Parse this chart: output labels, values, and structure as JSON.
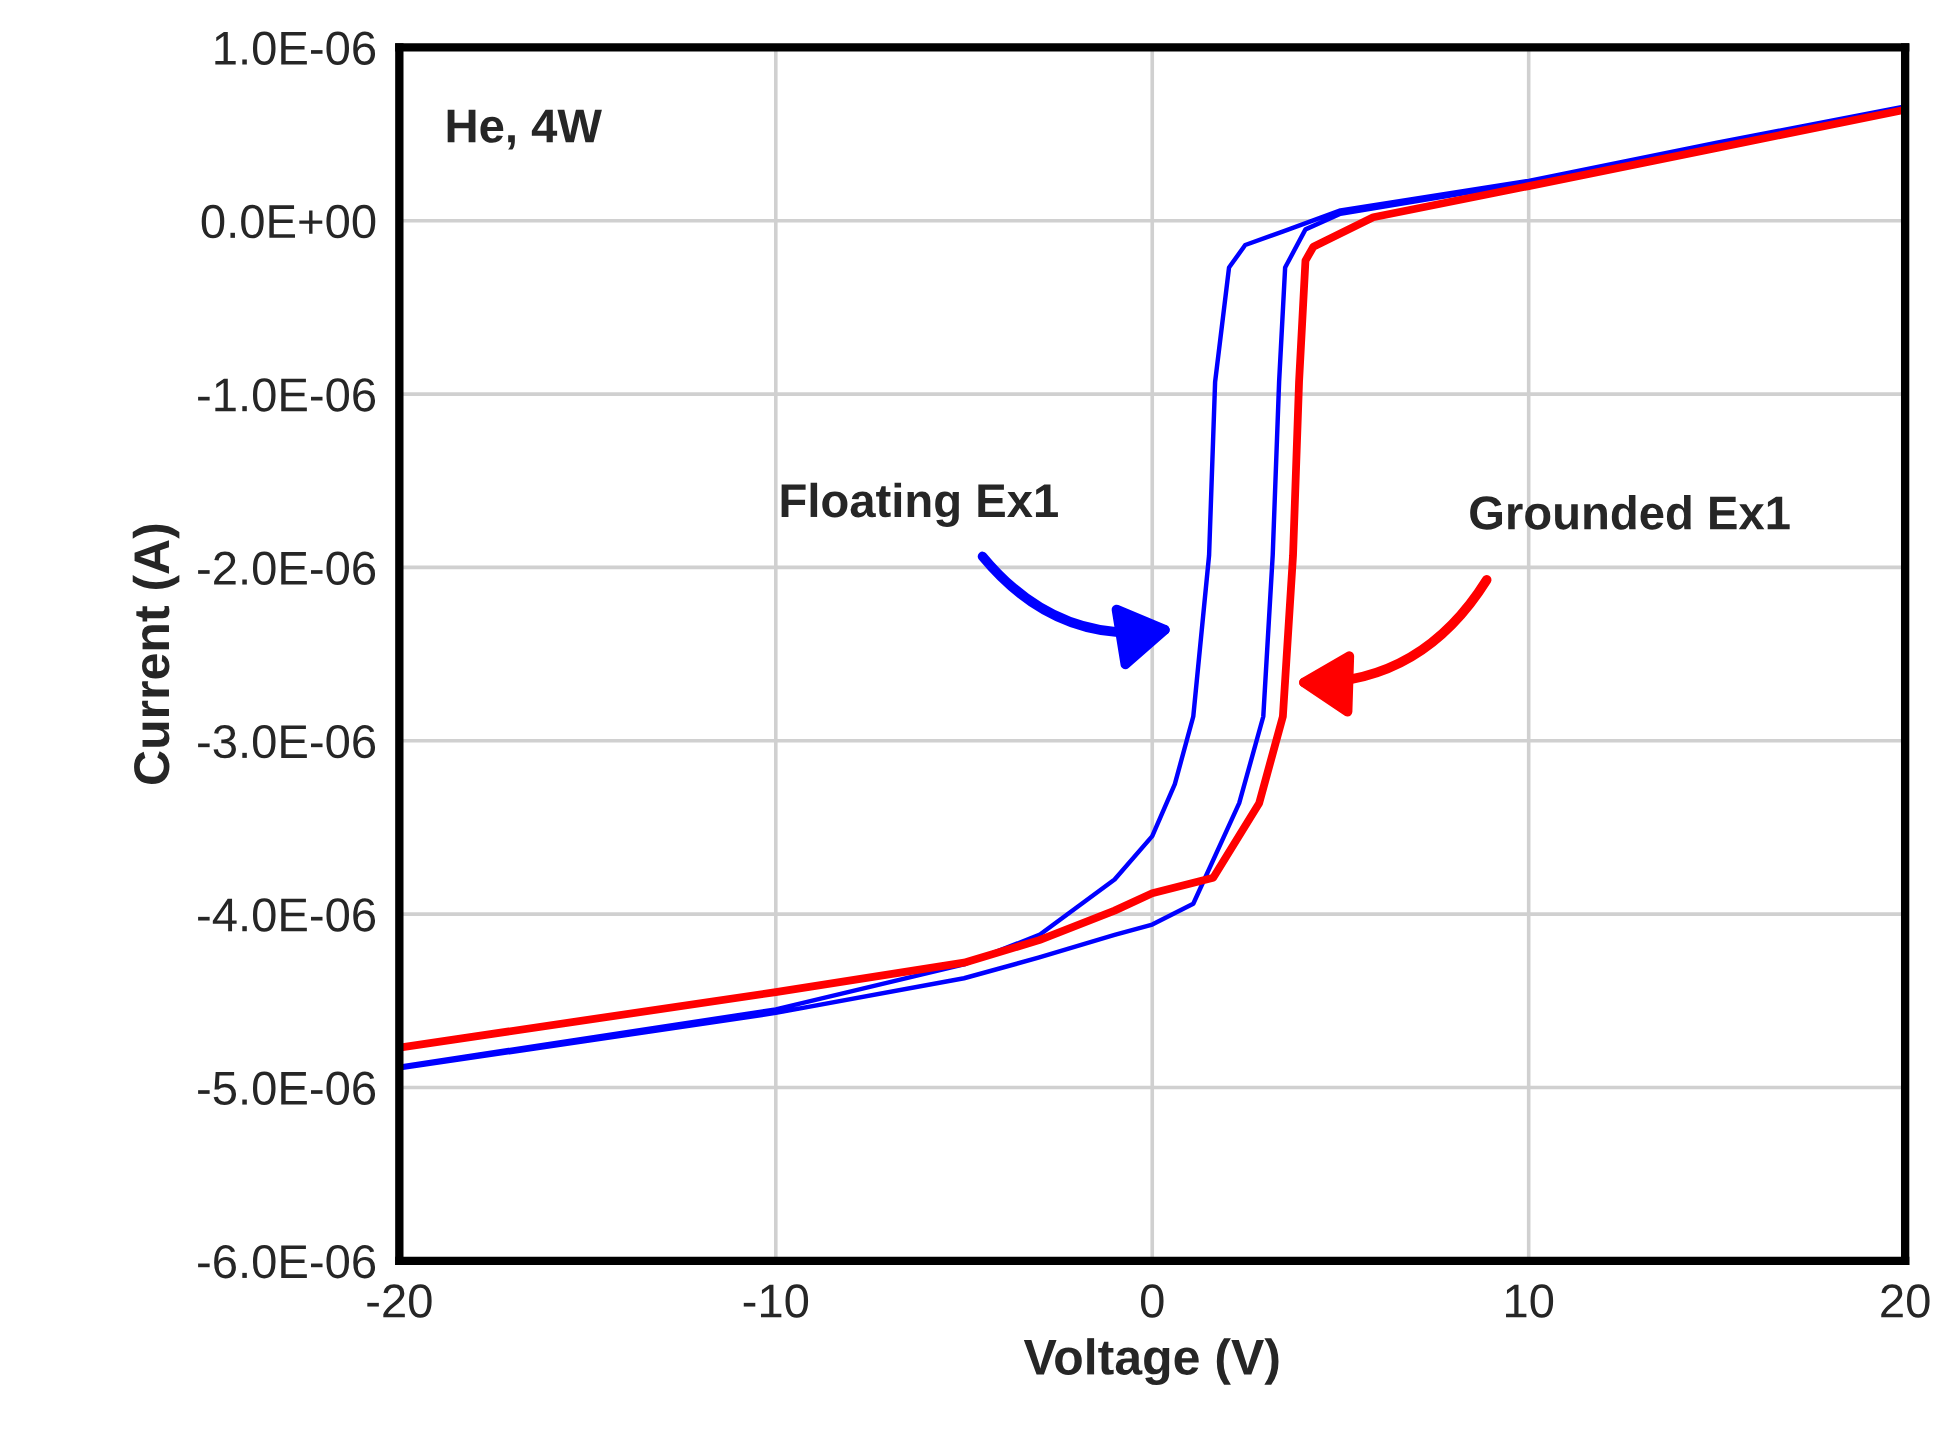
{
  "chart_data": {
    "type": "line",
    "xlabel": "Voltage (V)",
    "ylabel": "Current (A)",
    "xlim": [
      -20,
      20
    ],
    "xticks": [
      -20,
      -10,
      0,
      10,
      20
    ],
    "ylim": [
      -6e-06,
      1e-06
    ],
    "yticks": [
      {
        "value": -6e-06,
        "label": "-6.0E-06"
      },
      {
        "value": -5e-06,
        "label": "-5.0E-06"
      },
      {
        "value": -4e-06,
        "label": "-4.0E-06"
      },
      {
        "value": -3e-06,
        "label": "-3.0E-06"
      },
      {
        "value": -2e-06,
        "label": "-2.0E-06"
      },
      {
        "value": -1e-06,
        "label": "-1.0E-06"
      },
      {
        "value": 0,
        "label": "0.0E+00"
      },
      {
        "value": 1e-06,
        "label": "1.0E-06"
      }
    ],
    "grid": true,
    "legend": false,
    "marker": "none",
    "line_style": "solid",
    "series": [
      {
        "color": "#0000ff",
        "x": [
          -20,
          -10,
          -5,
          -3,
          -1,
          0,
          0.6,
          1.09,
          1.51,
          1.67,
          2.04,
          2.47,
          3.5,
          5,
          10,
          15,
          20,
          15,
          10,
          5,
          4.07,
          3.53,
          3.37,
          3.2,
          2.95,
          2.31,
          1.09,
          0,
          -1,
          -3,
          -5,
          -10,
          -20
        ],
        "values": [
          -4.88e-06,
          -4.55e-06,
          -4.29e-06,
          -4.12e-06,
          -3.8e-06,
          -3.55e-06,
          -3.25e-06,
          -2.86e-06,
          -1.93e-06,
          -9.3e-07,
          -2.7e-07,
          -1.4e-07,
          -6e-08,
          6e-08,
          2.3e-07,
          4.5e-07,
          6.6e-07,
          4.4e-07,
          2.2e-07,
          4e-08,
          -5e-08,
          -2.7e-07,
          -9.3e-07,
          -1.93e-06,
          -2.86e-06,
          -3.36e-06,
          -3.94e-06,
          -4.06e-06,
          -4.12e-06,
          -4.25e-06,
          -4.37e-06,
          -4.57e-06,
          -4.89e-06
        ]
      },
      {
        "color": "#ff0000",
        "x": [
          -20,
          -10,
          -5,
          -3,
          -1,
          0,
          1.62,
          2.84,
          3.47,
          3.74,
          3.9,
          4.07,
          4.28,
          5.87,
          10,
          15,
          20
        ],
        "values": [
          -4.77e-06,
          -4.45e-06,
          -4.28e-06,
          -4.15e-06,
          -3.98e-06,
          -3.88e-06,
          -3.79e-06,
          -3.36e-06,
          -2.86e-06,
          -1.93e-06,
          -9.3e-07,
          -2.3e-07,
          -1.5e-07,
          2e-08,
          2e-07,
          4.2e-07,
          6.4e-07
        ]
      }
    ],
    "annotations": [
      "He, 4W",
      "Floating Ex1",
      "Grounded Ex1"
    ]
  }
}
